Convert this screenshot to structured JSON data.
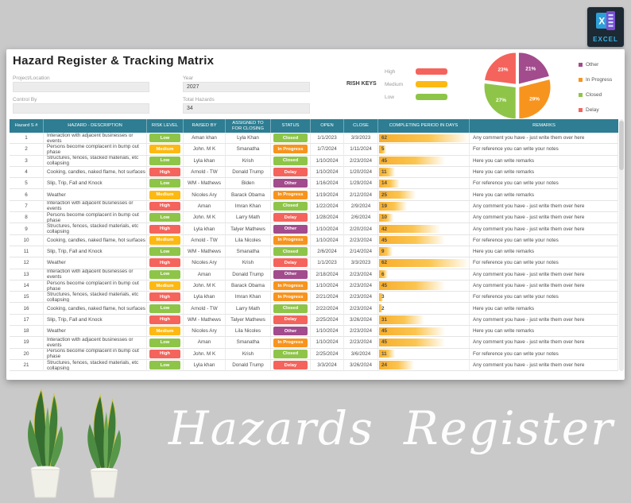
{
  "badge": {
    "label": "EXCEL"
  },
  "header": {
    "title": "Hazard Register & Tracking Matrix",
    "fields": [
      {
        "label": "Project/Location",
        "value": ""
      },
      {
        "label": "Control By",
        "value": ""
      },
      {
        "label": "Year",
        "value": "2027"
      },
      {
        "label": "Total Hazards",
        "value": "34"
      }
    ]
  },
  "risk_keys": {
    "label": "RISH KEYS",
    "items": [
      {
        "label": "High",
        "color": "#f4645c"
      },
      {
        "label": "Medium",
        "color": "#fdb913"
      },
      {
        "label": "Low",
        "color": "#8ec549"
      }
    ]
  },
  "chart_data": {
    "type": "pie",
    "title": "Status distribution",
    "labels": [
      "Other",
      "In Progress",
      "Closed",
      "Delay"
    ],
    "values": [
      21,
      29,
      27,
      23
    ],
    "data_labels": [
      "21%",
      "29%",
      "27%",
      "23%"
    ],
    "colors": [
      "#a24b8d",
      "#f7941e",
      "#8ec549",
      "#f4645c"
    ],
    "legend_position": "right"
  },
  "colors": {
    "header_teal": "#2e7d92",
    "risk": {
      "Low": "#8ec549",
      "Medium": "#fdb913",
      "High": "#f4645c"
    },
    "status": {
      "Closed": "#8ec549",
      "In Progress": "#f7941e",
      "Delay": "#f4645c",
      "Other": "#a24b8d"
    },
    "databar": "#f8ae2d"
  },
  "table": {
    "days_max": 62,
    "columns": [
      "Hazard S #",
      "HAZARD - DESCRIPTION",
      "RISK LEVEL",
      "RAISED BY",
      "ASSIGNED TO FOR CLOSING",
      "STATUS",
      "OPEN",
      "CLOSE",
      "COMPLETING PERIOD IN DAYS",
      "REMARKS"
    ],
    "rows": [
      {
        "n": "1",
        "desc": "Interaction with adjacent  businesses or  events",
        "risk": "Low",
        "raised": "Aman khan",
        "assigned": "Lyla Khan",
        "status": "Closed",
        "open": "1/1/2023",
        "close": "3/3/2023",
        "days": 62,
        "remark": "Any comment you have - just write them over here"
      },
      {
        "n": "2",
        "desc": "Persons become complacent in bump out phase",
        "risk": "Medium",
        "raised": "John. M K",
        "assigned": "Smanatha",
        "status": "In Progress",
        "open": "1/7/2024",
        "close": "1/11/2024",
        "days": 5,
        "remark": "For reference you can write your notes"
      },
      {
        "n": "3",
        "desc": "Structures, fences, stacked materials, etc collapsing",
        "risk": "Low",
        "raised": "Lyla khan",
        "assigned": "Krish",
        "status": "Closed",
        "open": "1/10/2024",
        "close": "2/23/2024",
        "days": 45,
        "remark": "Here you can write remarks"
      },
      {
        "n": "4",
        "desc": "Cooking, candles, naked flame, hot surfaces",
        "risk": "High",
        "raised": "Arnold - TW",
        "assigned": "Donald Trump",
        "status": "Delay",
        "open": "1/10/2024",
        "close": "1/20/2024",
        "days": 11,
        "remark": "Here you can write remarks"
      },
      {
        "n": "5",
        "desc": "Slip, Trip, Fall and Knock",
        "risk": "Low",
        "raised": "WM - Mathews",
        "assigned": "Biden",
        "status": "Other",
        "open": "1/16/2024",
        "close": "1/29/2024",
        "days": 14,
        "remark": "For reference you can write your notes"
      },
      {
        "n": "6",
        "desc": "Weather",
        "risk": "Medium",
        "raised": "Nicoles Ary",
        "assigned": "Barack Obama",
        "status": "In Progress",
        "open": "1/19/2024",
        "close": "2/12/2024",
        "days": 25,
        "remark": "Here you can write remarks"
      },
      {
        "n": "7",
        "desc": "Interaction with adjacent  businesses or  events",
        "risk": "High",
        "raised": "Aman",
        "assigned": "Imran Khan",
        "status": "Closed",
        "open": "1/22/2024",
        "close": "2/9/2024",
        "days": 19,
        "remark": "Any comment you have - just write them over here"
      },
      {
        "n": "8",
        "desc": "Persons become complacent in bump out phase",
        "risk": "Low",
        "raised": "John. M K",
        "assigned": "Larry Math",
        "status": "Delay",
        "open": "1/28/2024",
        "close": "2/6/2024",
        "days": 10,
        "remark": "Any comment you have - just write them over here"
      },
      {
        "n": "9",
        "desc": "Structures, fences, stacked materials, etc collapsing",
        "risk": "High",
        "raised": "Lyla khan",
        "assigned": "Talyer Mathews",
        "status": "Other",
        "open": "1/10/2024",
        "close": "2/20/2024",
        "days": 42,
        "remark": "Any comment you have - just write them over here"
      },
      {
        "n": "10",
        "desc": "Cooking, candles, naked flame, hot surfaces",
        "risk": "Medium",
        "raised": "Arnold - TW",
        "assigned": "Lila Nicoles",
        "status": "In Progress",
        "open": "1/10/2024",
        "close": "2/23/2024",
        "days": 45,
        "remark": "For reference you can write your notes"
      },
      {
        "n": "11",
        "desc": "Slip, Trip, Fall and Knock",
        "risk": "Low",
        "raised": "WM - Mathews",
        "assigned": "Smanatha",
        "status": "Closed",
        "open": "2/6/2024",
        "close": "2/14/2024",
        "days": 9,
        "remark": "Here you can write remarks"
      },
      {
        "n": "12",
        "desc": "Weather",
        "risk": "High",
        "raised": "Nicoles Ary",
        "assigned": "Krish",
        "status": "Delay",
        "open": "1/1/2023",
        "close": "3/3/2023",
        "days": 62,
        "remark": "For reference you can write your notes"
      },
      {
        "n": "13",
        "desc": "Interaction with adjacent  businesses or  events",
        "risk": "Low",
        "raised": "Aman",
        "assigned": "Donald Trump",
        "status": "Other",
        "open": "2/18/2024",
        "close": "2/23/2024",
        "days": 6,
        "remark": "Any comment you have - just write them over here"
      },
      {
        "n": "14",
        "desc": "Persons become complacent in bump out phase",
        "risk": "Medium",
        "raised": "John. M K",
        "assigned": "Barack Obama",
        "status": "In Progress",
        "open": "1/10/2024",
        "close": "2/23/2024",
        "days": 45,
        "remark": "Any comment you have - just write them over here"
      },
      {
        "n": "15",
        "desc": "Structures, fences, stacked materials, etc collapsing",
        "risk": "High",
        "raised": "Lyla khan",
        "assigned": "Imran Khan",
        "status": "In Progress",
        "open": "2/21/2024",
        "close": "2/23/2024",
        "days": 3,
        "remark": "For reference you can write your notes"
      },
      {
        "n": "16",
        "desc": "Cooking, candles, naked flame, hot surfaces",
        "risk": "Low",
        "raised": "Arnold - TW",
        "assigned": "Larry Math",
        "status": "Closed",
        "open": "2/22/2024",
        "close": "2/23/2024",
        "days": 2,
        "remark": "Here you can write remarks"
      },
      {
        "n": "17",
        "desc": "Slip, Trip, Fall and Knock",
        "risk": "High",
        "raised": "WM - Mathews",
        "assigned": "Talyer Mathews",
        "status": "Delay",
        "open": "2/25/2024",
        "close": "3/26/2024",
        "days": 31,
        "remark": "Any comment you have - just write them over here"
      },
      {
        "n": "18",
        "desc": "Weather",
        "risk": "Medium",
        "raised": "Nicoles Ary",
        "assigned": "Lila Nicoles",
        "status": "Other",
        "open": "1/10/2024",
        "close": "2/23/2024",
        "days": 45,
        "remark": "Here you can write remarks"
      },
      {
        "n": "19",
        "desc": "Interaction with adjacent  businesses or  events",
        "risk": "Low",
        "raised": "Aman",
        "assigned": "Smanatha",
        "status": "In Progress",
        "open": "1/10/2024",
        "close": "2/23/2024",
        "days": 45,
        "remark": "Any comment you have - just write them over here"
      },
      {
        "n": "20",
        "desc": "Persons become complacent in bump out phase",
        "risk": "High",
        "raised": "John. M K",
        "assigned": "Krish",
        "status": "Closed",
        "open": "2/25/2024",
        "close": "3/6/2024",
        "days": 11,
        "remark": "For reference you can write your notes"
      },
      {
        "n": "21",
        "desc": "Structures, fences, stacked materials, etc collapsing",
        "risk": "Low",
        "raised": "Lyla khan",
        "assigned": "Donald Trump",
        "status": "Delay",
        "open": "3/3/2024",
        "close": "3/26/2024",
        "days": 24,
        "remark": "Any comment you have - just write them over here"
      }
    ]
  },
  "watermark": {
    "word1": "Hazards",
    "word2": "Register"
  }
}
